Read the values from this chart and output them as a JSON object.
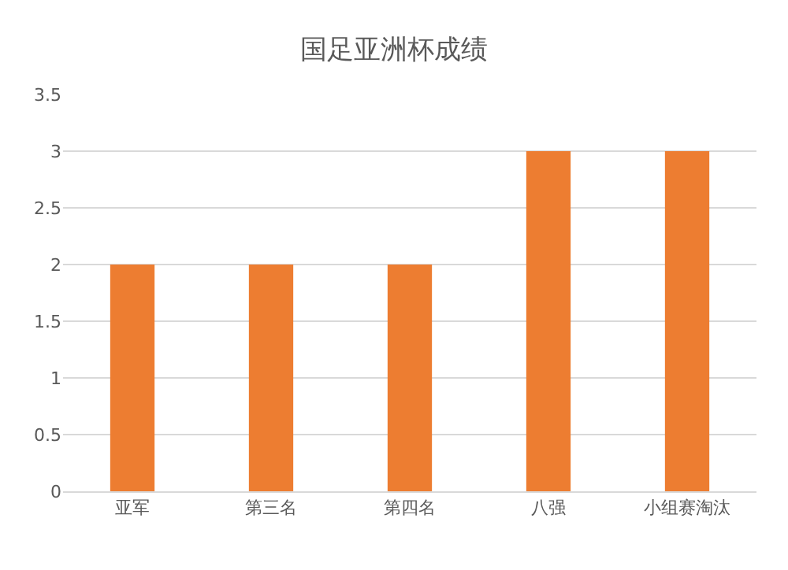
{
  "chart_data": {
    "type": "bar",
    "title": "国足亚洲杯成绩",
    "categories": [
      "亚军",
      "第三名",
      "第四名",
      "八强",
      "小组赛淘汰"
    ],
    "values": [
      2,
      2,
      2,
      3,
      3
    ],
    "color": "#ed7d31",
    "ylim": [
      0,
      3.5
    ],
    "yticks": [
      0,
      0.5,
      1,
      1.5,
      2,
      2.5,
      3,
      3.5
    ],
    "grid": "y"
  }
}
